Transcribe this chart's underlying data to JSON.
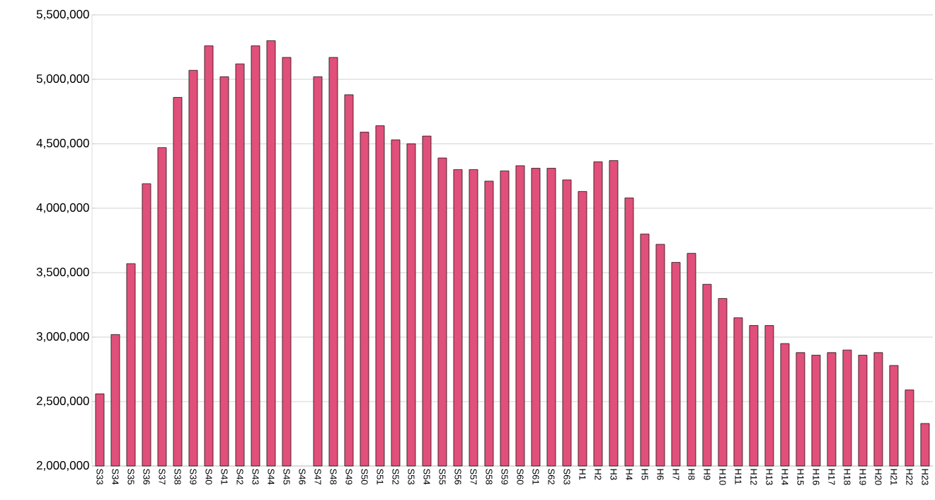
{
  "chart_data": {
    "type": "bar",
    "categories": [
      "S33",
      "S34",
      "S35",
      "S36",
      "S37",
      "S38",
      "S39",
      "S40",
      "S41",
      "S42",
      "S43",
      "S44",
      "S45",
      "S46",
      "S47",
      "S48",
      "S49",
      "S50",
      "S51",
      "S52",
      "S53",
      "S54",
      "S55",
      "S56",
      "S57",
      "S58",
      "S59",
      "S60",
      "S61",
      "S62",
      "S63",
      "H1",
      "H2",
      "H3",
      "H4",
      "H5",
      "H6",
      "H7",
      "H8",
      "H9",
      "H10",
      "H11",
      "H12",
      "H13",
      "H14",
      "H15",
      "H16",
      "H17",
      "H18",
      "H19",
      "H20",
      "H21",
      "H22",
      "H23"
    ],
    "values": [
      2560000,
      3020000,
      3570000,
      4190000,
      4470000,
      4860000,
      5070000,
      5260000,
      5020000,
      5120000,
      5260000,
      5300000,
      5170000,
      null,
      5020000,
      5170000,
      4880000,
      4590000,
      4640000,
      4530000,
      4500000,
      4560000,
      4390000,
      4300000,
      4300000,
      4210000,
      4290000,
      4330000,
      4310000,
      4310000,
      4220000,
      4130000,
      4360000,
      4370000,
      4080000,
      3800000,
      3720000,
      3580000,
      3650000,
      3410000,
      3300000,
      3150000,
      3090000,
      3090000,
      2950000,
      2880000,
      2860000,
      2880000,
      2900000,
      2860000,
      2880000,
      2780000,
      2590000,
      2330000
    ],
    "color": "#e0507a",
    "ylim": [
      2000000,
      5500000
    ],
    "yticks": [
      {
        "value": 2000000,
        "label": "2,000,000"
      },
      {
        "value": 2500000,
        "label": "2,500,000"
      },
      {
        "value": 3000000,
        "label": "3,000,000"
      },
      {
        "value": 3500000,
        "label": "3,500,000"
      },
      {
        "value": 4000000,
        "label": "4,000,000"
      },
      {
        "value": 4500000,
        "label": "4,500,000"
      },
      {
        "value": 5000000,
        "label": "5,000,000"
      },
      {
        "value": 5500000,
        "label": "5,500,000"
      }
    ],
    "grid": "y"
  }
}
